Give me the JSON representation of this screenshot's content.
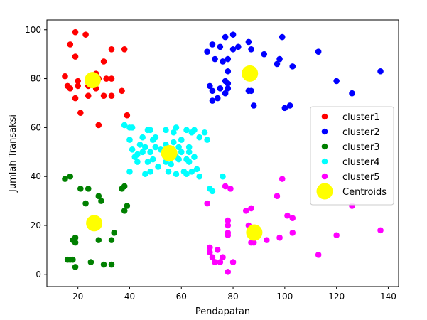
{
  "chart_data": {
    "type": "scatter",
    "title": "",
    "xlabel": "Pendapatan",
    "ylabel": "Jumlah Transaksi",
    "xlim": [
      8,
      144
    ],
    "ylim": [
      -5,
      104
    ],
    "xticks": [
      20,
      40,
      60,
      80,
      100,
      120,
      140
    ],
    "yticks": [
      0,
      20,
      40,
      60,
      80,
      100
    ],
    "grid": false,
    "legend_position": "right",
    "series": [
      {
        "name": "cluster1",
        "color": "#ff0000",
        "points": [
          [
            19,
            99
          ],
          [
            23,
            98
          ],
          [
            17,
            94
          ],
          [
            19,
            89
          ],
          [
            30,
            87
          ],
          [
            33,
            92
          ],
          [
            38,
            92
          ],
          [
            15,
            81
          ],
          [
            16,
            77
          ],
          [
            17,
            76
          ],
          [
            20,
            79
          ],
          [
            20,
            77
          ],
          [
            19,
            72
          ],
          [
            24,
            73
          ],
          [
            24,
            77
          ],
          [
            27,
            76
          ],
          [
            27,
            82
          ],
          [
            28,
            80
          ],
          [
            30,
            73
          ],
          [
            33,
            73
          ],
          [
            37,
            75
          ],
          [
            39,
            65
          ],
          [
            28,
            61
          ],
          [
            21,
            66
          ],
          [
            33,
            80
          ],
          [
            31,
            80
          ]
        ]
      },
      {
        "name": "cluster2",
        "color": "#0000ff",
        "points": [
          [
            70,
            91
          ],
          [
            72,
            94
          ],
          [
            75,
            93
          ],
          [
            77,
            97
          ],
          [
            78,
            88
          ],
          [
            80,
            98
          ],
          [
            80,
            92
          ],
          [
            82,
            93
          ],
          [
            86,
            95
          ],
          [
            87,
            92
          ],
          [
            92,
            90
          ],
          [
            98,
            88
          ],
          [
            99,
            97
          ],
          [
            103,
            85
          ],
          [
            113,
            91
          ],
          [
            73,
            88
          ],
          [
            76,
            87
          ],
          [
            78,
            83
          ],
          [
            71,
            77
          ],
          [
            72,
            75
          ],
          [
            72,
            71
          ],
          [
            74,
            72
          ],
          [
            75,
            76
          ],
          [
            77,
            74
          ],
          [
            77,
            79
          ],
          [
            78,
            76
          ],
          [
            78,
            78
          ],
          [
            86,
            75
          ],
          [
            87,
            75
          ],
          [
            88,
            69
          ],
          [
            97,
            86
          ],
          [
            100,
            68
          ],
          [
            102,
            69
          ],
          [
            120,
            79
          ],
          [
            126,
            74
          ],
          [
            137,
            83
          ]
        ]
      },
      {
        "name": "cluster3",
        "color": "#008000",
        "points": [
          [
            15,
            39
          ],
          [
            17,
            40
          ],
          [
            16,
            6
          ],
          [
            17,
            6
          ],
          [
            18,
            6
          ],
          [
            19,
            3
          ],
          [
            18,
            14
          ],
          [
            19,
            15
          ],
          [
            19,
            13
          ],
          [
            21,
            35
          ],
          [
            23,
            29
          ],
          [
            24,
            35
          ],
          [
            25,
            5
          ],
          [
            28,
            32
          ],
          [
            28,
            14
          ],
          [
            29,
            30
          ],
          [
            30,
            4
          ],
          [
            33,
            4
          ],
          [
            33,
            14
          ],
          [
            34,
            17
          ],
          [
            37,
            35
          ],
          [
            38,
            36
          ],
          [
            39,
            28
          ],
          [
            38,
            26
          ]
        ]
      },
      {
        "name": "cluster4",
        "color": "#00ffff",
        "points": [
          [
            38,
            61
          ],
          [
            40,
            60
          ],
          [
            41,
            60
          ],
          [
            40,
            55
          ],
          [
            41,
            51
          ],
          [
            42,
            48
          ],
          [
            40,
            42
          ],
          [
            43,
            46
          ],
          [
            43,
            49
          ],
          [
            44,
            53
          ],
          [
            45,
            56
          ],
          [
            45,
            50
          ],
          [
            46,
            52
          ],
          [
            47,
            46
          ],
          [
            47,
            59
          ],
          [
            48,
            59
          ],
          [
            48,
            50
          ],
          [
            49,
            55
          ],
          [
            49,
            47
          ],
          [
            50,
            52
          ],
          [
            46,
            41
          ],
          [
            48,
            42
          ],
          [
            50,
            56
          ],
          [
            51,
            44
          ],
          [
            52,
            51
          ],
          [
            54,
            53
          ],
          [
            54,
            59
          ],
          [
            54,
            48
          ],
          [
            54,
            46
          ],
          [
            55,
            42
          ],
          [
            56,
            45
          ],
          [
            57,
            54
          ],
          [
            57,
            58
          ],
          [
            58,
            60
          ],
          [
            58,
            48
          ],
          [
            58,
            41
          ],
          [
            59,
            47
          ],
          [
            59,
            52
          ],
          [
            60,
            55
          ],
          [
            60,
            50
          ],
          [
            61,
            42
          ],
          [
            62,
            59
          ],
          [
            62,
            41
          ],
          [
            63,
            52
          ],
          [
            63,
            46
          ],
          [
            63,
            50
          ],
          [
            64,
            58
          ],
          [
            64,
            42
          ],
          [
            65,
            48
          ],
          [
            65,
            59
          ],
          [
            66,
            43
          ],
          [
            67,
            56
          ],
          [
            67,
            40
          ],
          [
            69,
            58
          ],
          [
            70,
            55
          ],
          [
            71,
            35
          ],
          [
            72,
            34
          ],
          [
            76,
            40
          ],
          [
            62,
            47
          ]
        ]
      },
      {
        "name": "cluster5",
        "color": "#ff00ff",
        "points": [
          [
            70,
            29
          ],
          [
            71,
            11
          ],
          [
            71,
            9
          ],
          [
            72,
            7
          ],
          [
            73,
            5
          ],
          [
            73,
            5
          ],
          [
            74,
            10
          ],
          [
            75,
            5
          ],
          [
            76,
            7
          ],
          [
            77,
            36
          ],
          [
            78,
            20
          ],
          [
            78,
            22
          ],
          [
            78,
            17
          ],
          [
            78,
            16
          ],
          [
            79,
            35
          ],
          [
            78,
            1
          ],
          [
            80,
            5
          ],
          [
            85,
            26
          ],
          [
            86,
            20
          ],
          [
            87,
            27
          ],
          [
            87,
            13
          ],
          [
            88,
            13
          ],
          [
            88,
            15
          ],
          [
            93,
            14
          ],
          [
            97,
            32
          ],
          [
            98,
            15
          ],
          [
            99,
            39
          ],
          [
            101,
            24
          ],
          [
            103,
            23
          ],
          [
            103,
            17
          ],
          [
            113,
            8
          ],
          [
            120,
            16
          ],
          [
            126,
            28
          ],
          [
            137,
            18
          ]
        ]
      },
      {
        "name": "Centroids",
        "color": "#ffff00",
        "marker_size": "large",
        "points": [
          [
            25.7,
            79.4
          ],
          [
            86.5,
            82.1
          ],
          [
            26.3,
            20.9
          ],
          [
            55.3,
            49.5
          ],
          [
            88.2,
            17.1
          ]
        ]
      }
    ]
  }
}
